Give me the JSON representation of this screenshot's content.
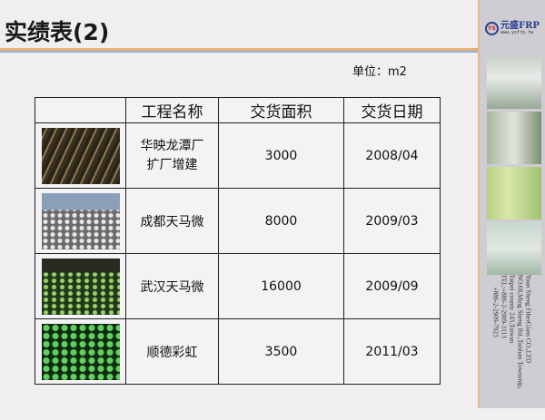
{
  "title": "实绩表(2)",
  "unit": "单位：m2",
  "table": {
    "headers": [
      "",
      "工程名称",
      "交货面积",
      "交货日期"
    ],
    "rows": [
      {
        "name": "华映龙潭厂扩厂增建",
        "area": "3000",
        "date": "2008/04"
      },
      {
        "name": "成都天马微",
        "area": "8000",
        "date": "2009/03"
      },
      {
        "name": "武汉天马微",
        "area": "16000",
        "date": "2009/09"
      },
      {
        "name": "顺德彩虹",
        "area": "3500",
        "date": "2011/03"
      }
    ]
  },
  "sidebar": {
    "logo_mark": "YS",
    "logo_name": "元盛FRP",
    "logo_url": "www.ysfrp.tw",
    "address": [
      "Yuan Sheng FiberGlass CO.,LTD",
      "NO.68,Ming Sheng Rd.,Taishan Township,",
      "Taipei county 243,Taiwan",
      "TEL:+886-2-2909-3113",
      "+886-2-2909-7923"
    ]
  },
  "colors": {
    "accent_orange": "#e8b070",
    "accent_blue": "#8fb0e0",
    "logo_blue": "#2a3f8f"
  }
}
